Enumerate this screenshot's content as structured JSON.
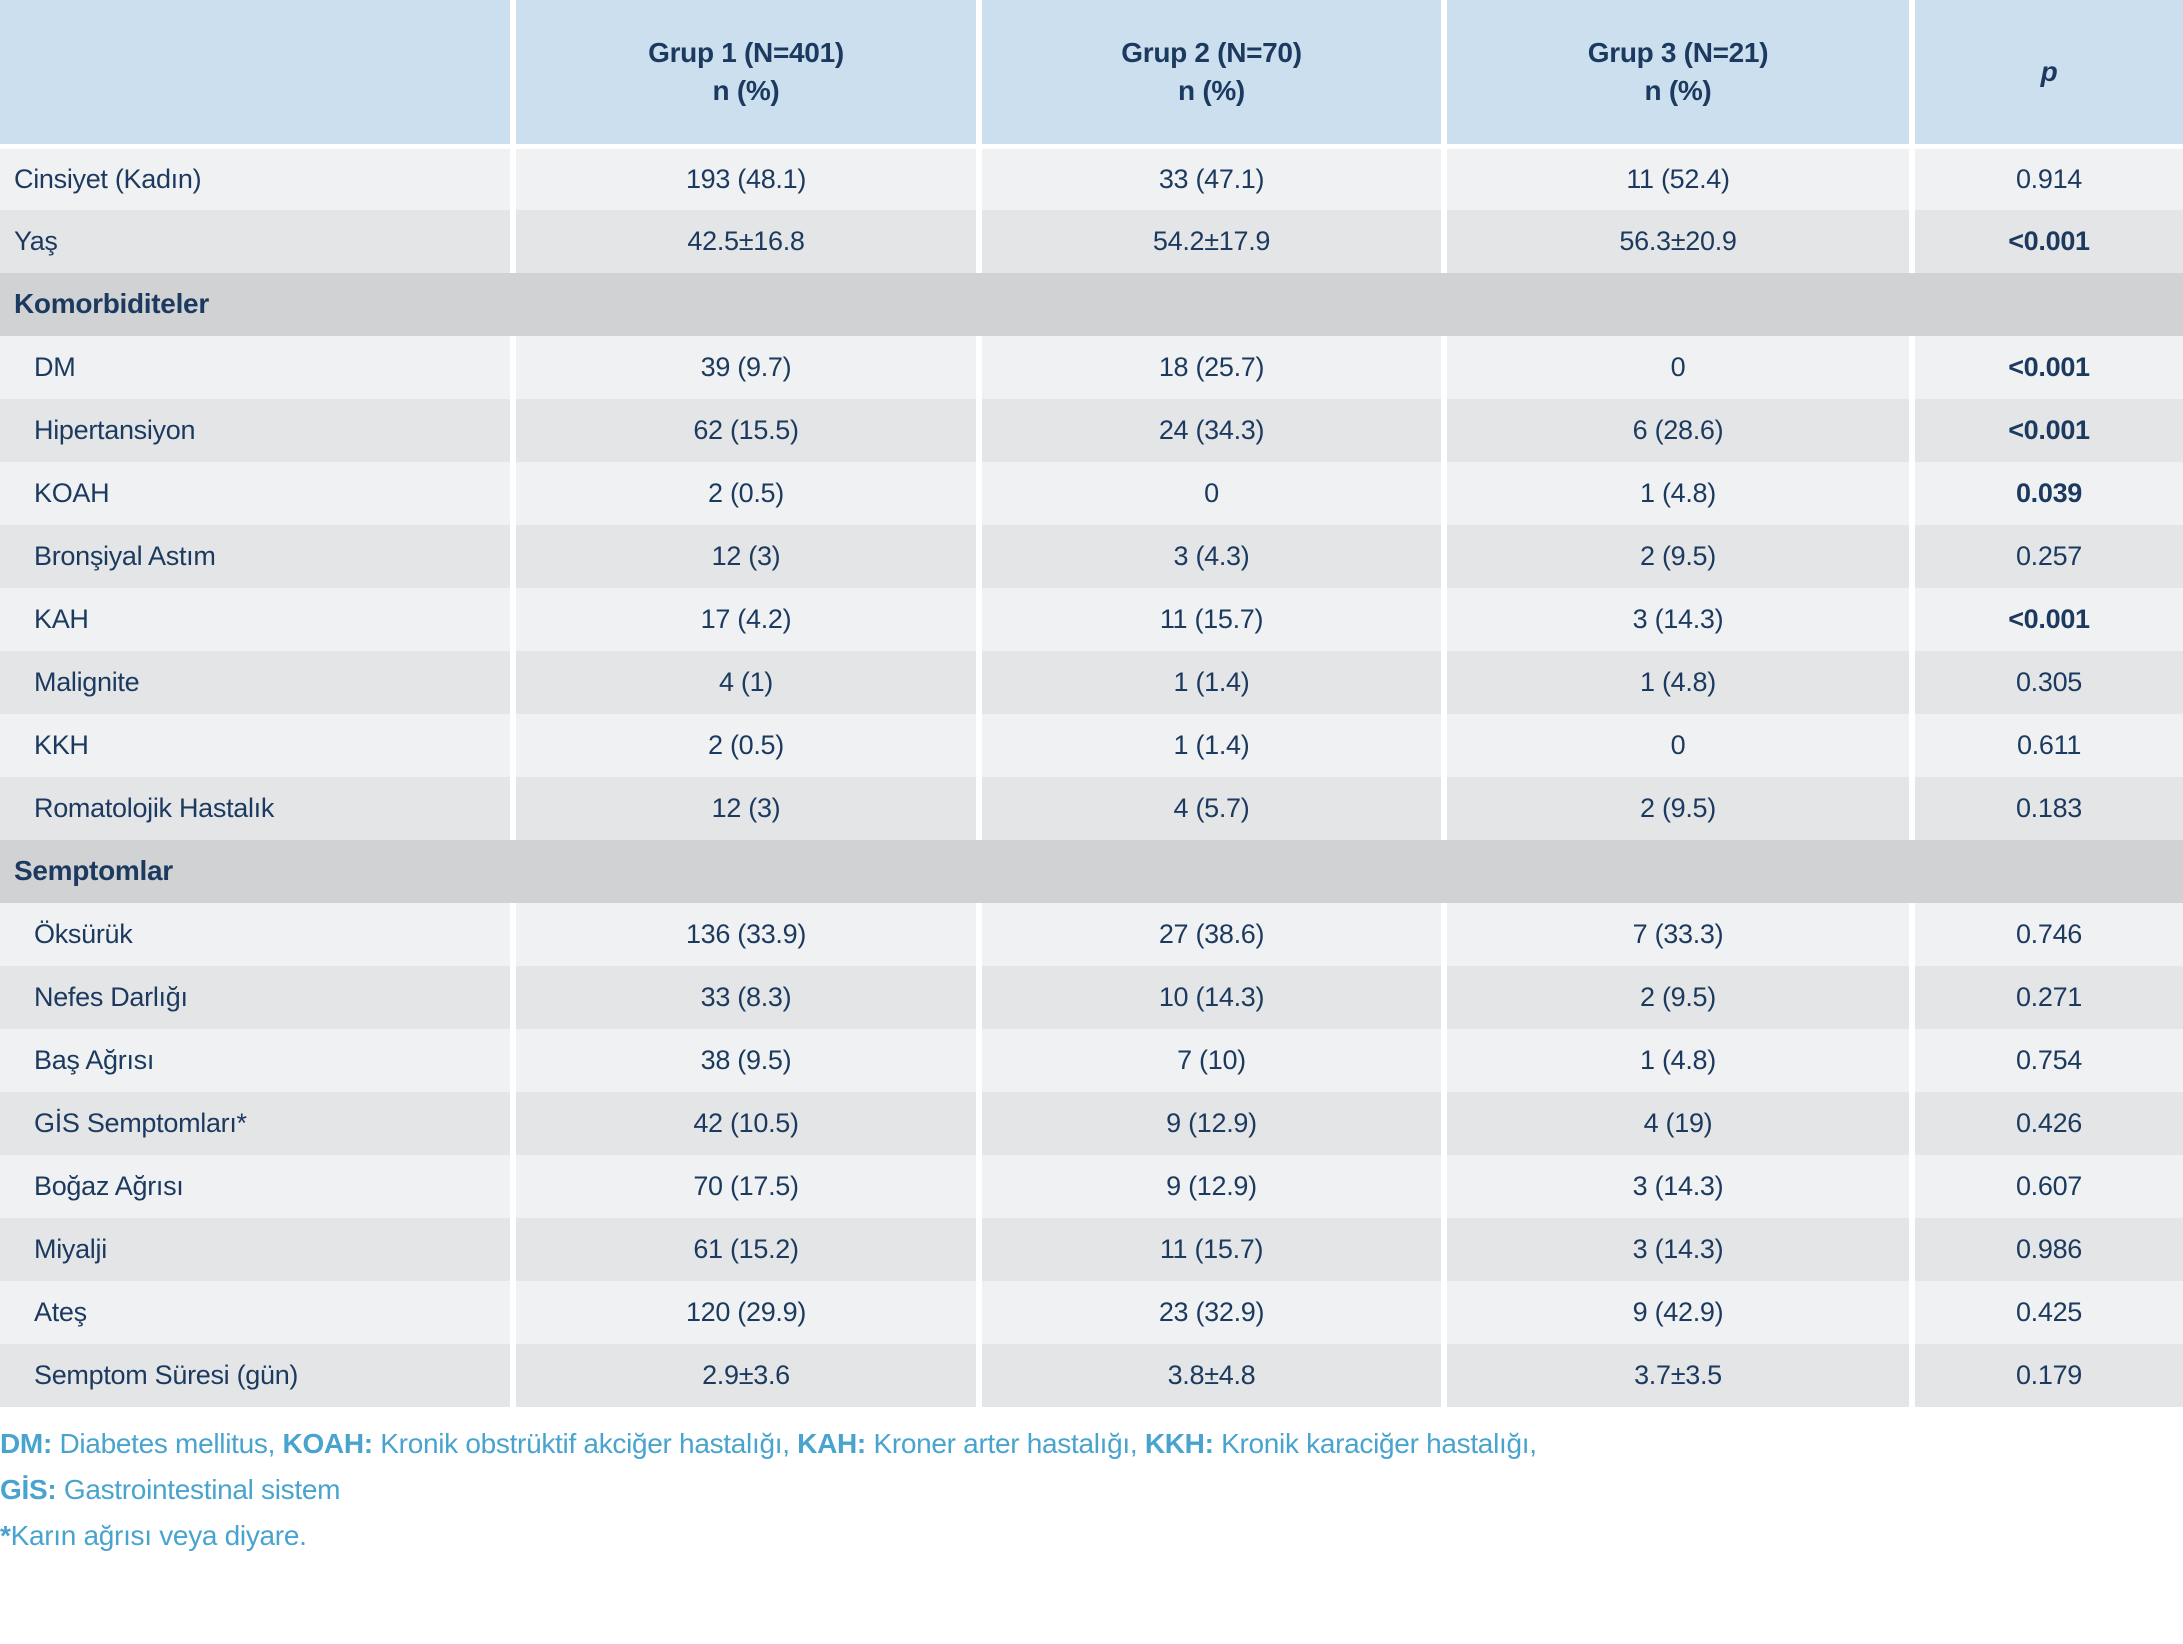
{
  "colors": {
    "header_bg": "#cbdfee",
    "row_light": "#f0f1f2",
    "row_dark": "#e4e5e7",
    "section_bg": "#d1d2d4",
    "text_navy": "#1c3a5f",
    "footnote_blue": "#48a4ce",
    "separator": "#ffffff"
  },
  "table": {
    "header": {
      "columns": [
        {
          "title": "Grup 1 (N=401)",
          "subtitle": "n (%)"
        },
        {
          "title": "Grup 2 (N=70)",
          "subtitle": "n (%)"
        },
        {
          "title": "Grup 3 (N=21)",
          "subtitle": "n (%)"
        }
      ],
      "p_label": "p"
    },
    "rows": [
      {
        "type": "data",
        "label": "Cinsiyet (Kadın)",
        "indent": false,
        "g1": "193 (48.1)",
        "g2": "33 (47.1)",
        "g3": "11 (52.4)",
        "p": "0.914",
        "p_bold": false
      },
      {
        "type": "data",
        "label": "Yaş",
        "indent": false,
        "g1": "42.5±16.8",
        "g2": "54.2±17.9",
        "g3": "56.3±20.9",
        "p": "<0.001",
        "p_bold": true
      },
      {
        "type": "section",
        "label": "Komorbiditeler"
      },
      {
        "type": "data",
        "label": "DM",
        "indent": true,
        "g1": "39 (9.7)",
        "g2": "18 (25.7)",
        "g3": "0",
        "p": "<0.001",
        "p_bold": true
      },
      {
        "type": "data",
        "label": "Hipertansiyon",
        "indent": true,
        "g1": "62 (15.5)",
        "g2": "24 (34.3)",
        "g3": "6 (28.6)",
        "p": "<0.001",
        "p_bold": true
      },
      {
        "type": "data",
        "label": "KOAH",
        "indent": true,
        "g1": "2 (0.5)",
        "g2": "0",
        "g3": "1 (4.8)",
        "p": "0.039",
        "p_bold": true
      },
      {
        "type": "data",
        "label": "Bronşiyal Astım",
        "indent": true,
        "g1": "12 (3)",
        "g2": "3 (4.3)",
        "g3": "2 (9.5)",
        "p": "0.257",
        "p_bold": false
      },
      {
        "type": "data",
        "label": "KAH",
        "indent": true,
        "g1": "17 (4.2)",
        "g2": "11 (15.7)",
        "g3": "3 (14.3)",
        "p": "<0.001",
        "p_bold": true
      },
      {
        "type": "data",
        "label": "Malignite",
        "indent": true,
        "g1": "4 (1)",
        "g2": "1 (1.4)",
        "g3": "1 (4.8)",
        "p": "0.305",
        "p_bold": false
      },
      {
        "type": "data",
        "label": "KKH",
        "indent": true,
        "g1": "2 (0.5)",
        "g2": "1 (1.4)",
        "g3": "0",
        "p": "0.611",
        "p_bold": false
      },
      {
        "type": "data",
        "label": "Romatolojik Hastalık",
        "indent": true,
        "g1": "12 (3)",
        "g2": "4 (5.7)",
        "g3": "2 (9.5)",
        "p": "0.183",
        "p_bold": false
      },
      {
        "type": "section",
        "label": "Semptomlar"
      },
      {
        "type": "data",
        "label": "Öksürük",
        "indent": true,
        "g1": "136 (33.9)",
        "g2": "27 (38.6)",
        "g3": "7 (33.3)",
        "p": "0.746",
        "p_bold": false
      },
      {
        "type": "data",
        "label": "Nefes Darlığı",
        "indent": true,
        "g1": "33 (8.3)",
        "g2": "10 (14.3)",
        "g3": "2 (9.5)",
        "p": "0.271",
        "p_bold": false
      },
      {
        "type": "data",
        "label": "Baş Ağrısı",
        "indent": true,
        "g1": "38 (9.5)",
        "g2": "7 (10)",
        "g3": "1 (4.8)",
        "p": "0.754",
        "p_bold": false
      },
      {
        "type": "data",
        "label": "GİS Semptomları*",
        "indent": true,
        "g1": "42 (10.5)",
        "g2": "9 (12.9)",
        "g3": "4 (19)",
        "p": "0.426",
        "p_bold": false
      },
      {
        "type": "data",
        "label": "Boğaz Ağrısı",
        "indent": true,
        "g1": "70 (17.5)",
        "g2": "9 (12.9)",
        "g3": "3 (14.3)",
        "p": "0.607",
        "p_bold": false
      },
      {
        "type": "data",
        "label": "Miyalji",
        "indent": true,
        "g1": "61 (15.2)",
        "g2": "11 (15.7)",
        "g3": "3 (14.3)",
        "p": "0.986",
        "p_bold": false
      },
      {
        "type": "data",
        "label": "Ateş",
        "indent": true,
        "g1": "120 (29.9)",
        "g2": "23 (32.9)",
        "g3": "9 (42.9)",
        "p": "0.425",
        "p_bold": false
      },
      {
        "type": "data",
        "label": "Semptom Süresi (gün)",
        "indent": true,
        "g1": "2.9±3.6",
        "g2": "3.8±4.8",
        "g3": "3.7±3.5",
        "p": "0.179",
        "p_bold": false
      }
    ]
  },
  "footnotes": [
    {
      "segments": [
        {
          "text": "DM:",
          "bold": true
        },
        {
          "text": " Diabetes mellitus, ",
          "bold": false
        },
        {
          "text": "KOAH:",
          "bold": true
        },
        {
          "text": " Kronik obstrüktif akciğer hastalığı, ",
          "bold": false
        },
        {
          "text": "KAH:",
          "bold": true
        },
        {
          "text": " Kroner arter hastalığı, ",
          "bold": false
        },
        {
          "text": "KKH:",
          "bold": true
        },
        {
          "text": " Kronik karaciğer hastalığı,",
          "bold": false
        }
      ]
    },
    {
      "segments": [
        {
          "text": "GİS:",
          "bold": true
        },
        {
          "text": " Gastrointestinal sistem",
          "bold": false
        }
      ]
    },
    {
      "segments": [
        {
          "text": "*",
          "bold": true
        },
        {
          "text": "Karın ağrısı veya diyare.",
          "bold": false
        }
      ]
    }
  ]
}
